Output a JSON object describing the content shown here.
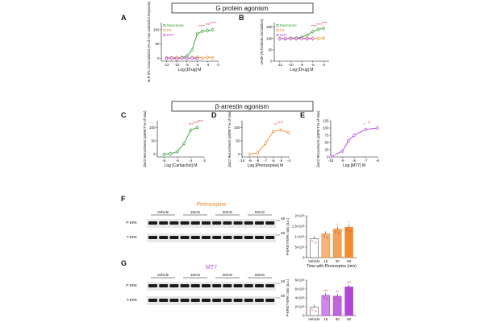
{
  "sections": {
    "g_protein": "G protein agonism",
    "arrestin": "β-arrestin agonism"
  },
  "colors": {
    "muscarine": "#2ca02c",
    "pz": "#f28a30",
    "mt7": "#b044d8",
    "sig": "#e8202a",
    "vehicle": "#ffffff"
  },
  "chart_data": [
    {
      "panel": "A",
      "type": "scatter",
      "xlabel": "Log [Drug] M",
      "ylabel": "M₁R IP1 Accumulation (% of max carbachol response)",
      "xticks": [
        "-12",
        "-10",
        "-8",
        "-6",
        "-4",
        "-2"
      ],
      "yticks": [
        "0",
        "50",
        "100"
      ],
      "xlim": [
        -13,
        -2
      ],
      "ylim": [
        -10,
        125
      ],
      "legend": [
        "Muscarine",
        "PZ",
        "MT7"
      ],
      "series": [
        {
          "name": "Muscarine",
          "x": [
            -12,
            -11,
            -10,
            -9,
            -8,
            -7,
            -6,
            -5,
            -4,
            -3
          ],
          "y": [
            0,
            2,
            0,
            3,
            8,
            30,
            85,
            95,
            97,
            100
          ]
        },
        {
          "name": "PZ",
          "x": [
            -12,
            -11,
            -10,
            -9,
            -8,
            -7,
            -6,
            -5,
            -4,
            -3
          ],
          "y": [
            2,
            0,
            3,
            1,
            0,
            2,
            4,
            1,
            3,
            2
          ]
        },
        {
          "name": "MT7",
          "x": [
            -12,
            -11,
            -10,
            -9,
            -8,
            -7,
            -6
          ],
          "y": [
            0,
            1,
            -2,
            2,
            0,
            1,
            -1
          ]
        }
      ],
      "sig_labels": [
        "****",
        "****",
        "****"
      ]
    },
    {
      "panel": "B",
      "type": "scatter",
      "xlabel": "Log [Drug] M",
      "ylabel": "cAMP (% forskolin stimulation)",
      "xticks": [
        "-12",
        "-10",
        "-8",
        "-6",
        "-4"
      ],
      "yticks": [
        "0",
        "50",
        "100",
        "150"
      ],
      "xlim": [
        -13,
        -3
      ],
      "ylim": [
        0,
        170
      ],
      "legend": [
        "Muscarine",
        "PZ",
        "MT7"
      ],
      "series": [
        {
          "name": "Muscarine",
          "x": [
            -12,
            -11,
            -10,
            -9,
            -8,
            -7,
            -6,
            -5,
            -4
          ],
          "y": [
            100,
            98,
            101,
            102,
            105,
            115,
            130,
            140,
            145
          ]
        },
        {
          "name": "PZ",
          "x": [
            -12,
            -11,
            -10,
            -9,
            -8,
            -7,
            -6,
            -5,
            -4
          ],
          "y": [
            100,
            99,
            101,
            98,
            100,
            102,
            99,
            100,
            101
          ]
        },
        {
          "name": "MT7",
          "x": [
            -12,
            -11,
            -10,
            -9,
            -8,
            -7,
            -6
          ],
          "y": [
            98,
            100,
            99,
            101,
            100,
            98,
            100
          ]
        }
      ],
      "sig_labels": [
        "****",
        "****",
        "****"
      ]
    },
    {
      "panel": "C",
      "type": "scatter",
      "xlabel": "Log [Carbachol] M",
      "ylabel": "βarr2 Recruitment (ΔBRET % of Max)",
      "xticks": [
        "-8",
        "-6",
        "-4",
        "-2"
      ],
      "yticks": [
        "0",
        "50",
        "100"
      ],
      "xlim": [
        -9,
        -2
      ],
      "ylim": [
        -10,
        125
      ],
      "series": [
        {
          "name": "Carbachol",
          "x": [
            -8,
            -7,
            -6,
            -5,
            -4,
            -3
          ],
          "y": [
            0,
            2,
            10,
            40,
            90,
            100
          ]
        }
      ],
      "sig_labels": [
        "***",
        "****",
        "****"
      ]
    },
    {
      "panel": "D",
      "type": "scatter",
      "xlabel": "Log [Pirenzepine] M",
      "ylabel": "βarr2 Recruitment (ΔBRET % of Max)",
      "xticks": [
        "-10",
        "-9",
        "-8",
        "-7",
        "-6",
        "-5",
        "-4"
      ],
      "yticks": [
        "0",
        "50",
        "100"
      ],
      "xlim": [
        -10,
        -4
      ],
      "ylim": [
        -10,
        125
      ],
      "series": [
        {
          "name": "Pirenzepine",
          "x": [
            -9,
            -8,
            -7,
            -6,
            -5,
            -4
          ],
          "y": [
            0,
            5,
            40,
            85,
            90,
            80
          ]
        }
      ],
      "sig_labels": [
        "**",
        "****"
      ]
    },
    {
      "panel": "E",
      "type": "scatter",
      "xlabel": "Log [MT7] M",
      "ylabel": "βarr2 Recruitment (ΔBRET % of Max)",
      "xticks": [
        "-10",
        "-9",
        "-8",
        "-7",
        "-6"
      ],
      "yticks": [
        "0",
        "25",
        "50",
        "75",
        "100",
        "125"
      ],
      "xlim": [
        -10,
        -6
      ],
      "ylim": [
        0,
        125
      ],
      "series": [
        {
          "name": "MT7",
          "x": [
            -10,
            -9,
            -8.5,
            -8,
            -7,
            -6
          ],
          "y": [
            0,
            20,
            55,
            75,
            95,
            100
          ]
        }
      ],
      "sig_labels": [
        "*",
        "**"
      ]
    },
    {
      "panel": "F",
      "type": "bar",
      "ylabel": "P-ERK/T-ERK ratio (a.u.)",
      "xlabel": "Time with Pirenzepine (min)",
      "categories": [
        "Vehicle",
        "15",
        "30",
        "60"
      ],
      "values": [
        1.0,
        1.25,
        1.5,
        1.6
      ],
      "yticks": [
        "0",
        "5×10⁵",
        "1×10⁶",
        "1.5×10⁶",
        "2×10⁶"
      ],
      "ylim": [
        0,
        2.2
      ],
      "sig_labels": [
        "",
        "",
        "*",
        "*"
      ]
    },
    {
      "panel": "G",
      "type": "bar",
      "ylabel": "P-ERK/T-ERK ratio (a.u.)",
      "categories": [
        "Vehicle",
        "15",
        "30",
        "60"
      ],
      "values": [
        1.0,
        2.4,
        2.3,
        3.4
      ],
      "yticks": [
        "0",
        "2×10⁵",
        "4×10⁵",
        "6×10⁵",
        "8×10⁵"
      ],
      "ylim": [
        0,
        4.2
      ],
      "sig_labels": [
        "",
        "***",
        "**",
        "***"
      ]
    }
  ],
  "blots": {
    "F": {
      "title": "Pirenzepine",
      "lanes": [
        "Vehicle",
        "15min",
        "30min",
        "60min"
      ],
      "rows": [
        "P-ERK",
        "T-ERK"
      ],
      "kda": [
        "48",
        "48"
      ]
    },
    "G": {
      "title": "MT7",
      "lanes": [
        "Vehicle",
        "15min",
        "30min",
        "60min"
      ],
      "rows": [
        "P-ERK",
        "T-ERK"
      ],
      "kda": [
        "48",
        "48"
      ]
    }
  },
  "panel_letters": [
    "A",
    "B",
    "C",
    "D",
    "E",
    "F",
    "G"
  ]
}
